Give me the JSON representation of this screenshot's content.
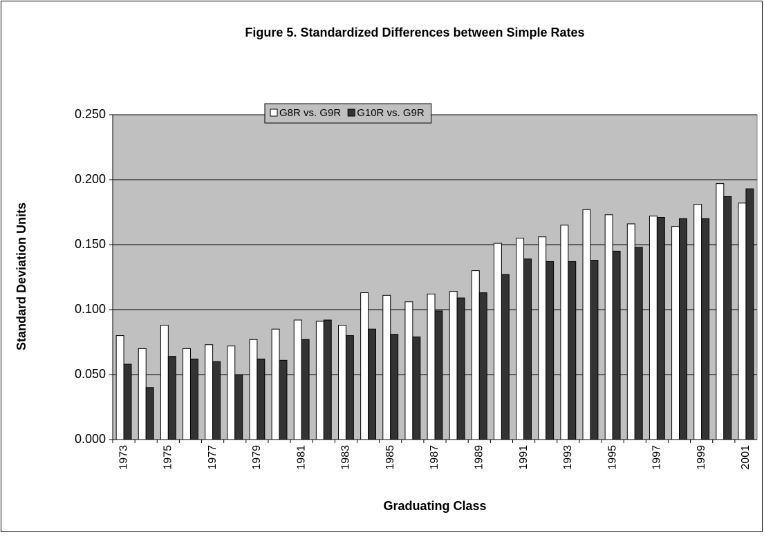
{
  "chart_data": {
    "type": "bar",
    "title": "Figure 5. Standardized Differences between Simple Rates",
    "x_label": "Graduating Class",
    "y_label": "Standard Deviation Units",
    "categories": [
      "1973",
      null,
      "1975",
      null,
      "1977",
      null,
      "1979",
      null,
      "1981",
      null,
      "1983",
      null,
      "1985",
      null,
      "1987",
      null,
      "1989",
      null,
      "1991",
      null,
      "1993",
      null,
      "1995",
      null,
      "1997",
      null,
      "1999",
      null,
      "2001"
    ],
    "series": [
      {
        "name": "G8R vs. G9R",
        "color": "#ffffff",
        "values": [
          0.08,
          0.07,
          0.088,
          0.07,
          0.073,
          0.072,
          0.077,
          0.085,
          0.092,
          0.091,
          0.088,
          0.113,
          0.111,
          0.106,
          0.112,
          0.114,
          0.13,
          0.151,
          0.155,
          0.156,
          0.165,
          0.177,
          0.173,
          0.166,
          0.172,
          0.164,
          0.181,
          0.197,
          0.182
        ]
      },
      {
        "name": "G10R vs. G9R",
        "color": "#333333",
        "values": [
          0.058,
          0.04,
          0.064,
          0.062,
          0.06,
          0.05,
          0.062,
          0.061,
          0.077,
          0.092,
          0.08,
          0.085,
          0.081,
          0.079,
          0.099,
          0.109,
          0.113,
          0.127,
          0.139,
          0.137,
          0.137,
          0.138,
          0.145,
          0.148,
          0.171,
          0.17,
          0.17,
          0.187,
          0.193
        ]
      }
    ],
    "ylim": [
      0,
      0.25
    ],
    "yticks": [
      {
        "value": 0,
        "label": "0.000"
      },
      {
        "value": 0.05,
        "label": "0.050"
      },
      {
        "value": 0.1,
        "label": "0.100"
      },
      {
        "value": 0.15,
        "label": "0.150"
      },
      {
        "value": 0.2,
        "label": "0.200"
      },
      {
        "value": 0.25,
        "label": "0.250"
      }
    ],
    "grid": true,
    "legend": "top"
  }
}
